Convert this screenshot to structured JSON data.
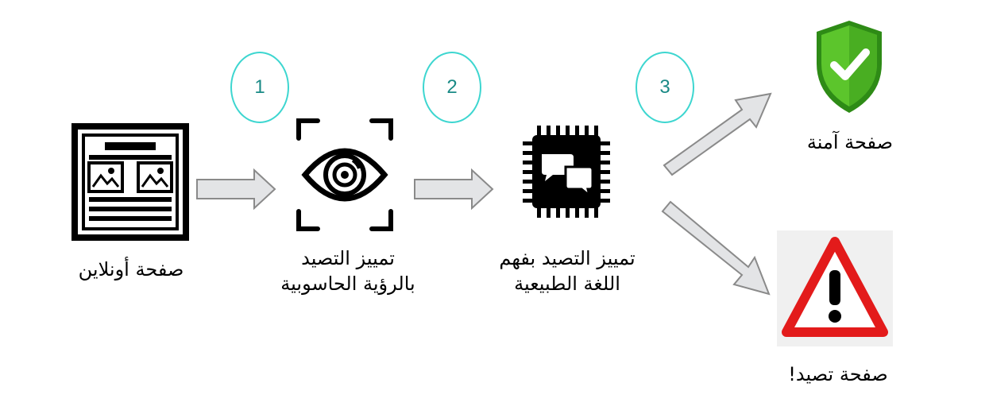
{
  "nodes": {
    "online_page": {
      "label": "صفحة أونلاين"
    },
    "vision": {
      "line1": "تمييز التصيد",
      "line2": "بالرؤية الحاسوبية"
    },
    "nlp": {
      "line1": "تمييز التصيد بفهم",
      "line2": "اللغة الطبيعية"
    },
    "safe": {
      "label": "صفحة آمنة"
    },
    "phishing": {
      "label": "صفحة تصيد!"
    }
  },
  "steps": [
    "1",
    "2",
    "3"
  ],
  "colors": {
    "step_border": "#3dd6d0",
    "step_text": "#1a8a86",
    "arrow_fill": "#e3e4e6",
    "arrow_stroke": "#8a8a8a",
    "shield_green": "#4caf24",
    "warning_red": "#e31b1b"
  }
}
